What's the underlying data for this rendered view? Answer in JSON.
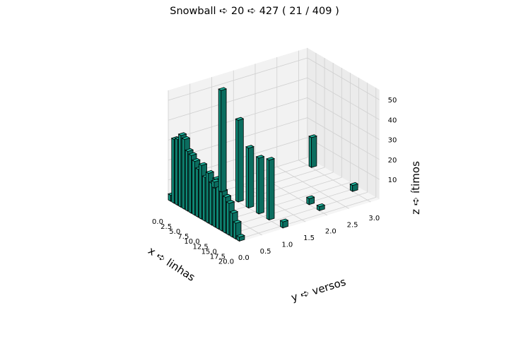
{
  "chart_data": {
    "type": "bar3d",
    "title": "Snowball ➪ 20 ➪ 427 ( 21 / 409 )",
    "xlabel": "x ➪ linhas",
    "ylabel": "y ➪ versos",
    "zlabel": "z ➪ ítimos",
    "x_ticks": [
      "0.0",
      "2.5",
      "5.0",
      "7.5",
      "10.0",
      "12.5",
      "15.0",
      "17.5",
      "20.0"
    ],
    "y_ticks": [
      "0.0",
      "0.5",
      "1.0",
      "1.5",
      "2.0",
      "2.5",
      "3.0"
    ],
    "z_ticks": [
      "10",
      "20",
      "30",
      "40",
      "50"
    ],
    "xlim": [
      0,
      21
    ],
    "ylim": [
      0,
      3.2
    ],
    "zlim": [
      0,
      55
    ],
    "grid": true,
    "bar_color": "#19b39b",
    "edge_color": "#000000",
    "bars": [
      {
        "x": 0,
        "y": 0,
        "z": 3
      },
      {
        "x": 1,
        "y": 0,
        "z": 32
      },
      {
        "x": 2,
        "y": 0,
        "z": 33
      },
      {
        "x": 3,
        "y": 0,
        "z": 36
      },
      {
        "x": 4,
        "y": 0,
        "z": 35
      },
      {
        "x": 5,
        "y": 0,
        "z": 30
      },
      {
        "x": 6,
        "y": 0,
        "z": 29
      },
      {
        "x": 7,
        "y": 0,
        "z": 27
      },
      {
        "x": 8,
        "y": 0,
        "z": 24
      },
      {
        "x": 9,
        "y": 0,
        "z": 27
      },
      {
        "x": 10,
        "y": 0,
        "z": 22
      },
      {
        "x": 11,
        "y": 0,
        "z": 25
      },
      {
        "x": 12,
        "y": 0,
        "z": 21
      },
      {
        "x": 13,
        "y": 0,
        "z": 24
      },
      {
        "x": 14,
        "y": 0,
        "z": 23
      },
      {
        "x": 15,
        "y": 0,
        "z": 20
      },
      {
        "x": 16,
        "y": 0,
        "z": 18
      },
      {
        "x": 17,
        "y": 0,
        "z": 16
      },
      {
        "x": 18,
        "y": 0,
        "z": 12
      },
      {
        "x": 19,
        "y": 0,
        "z": 8
      },
      {
        "x": 20,
        "y": 0,
        "z": 2
      },
      {
        "x": 0,
        "y": 1,
        "z": 3
      },
      {
        "x": 2,
        "y": 1,
        "z": 51
      },
      {
        "x": 7,
        "y": 1,
        "z": 41
      },
      {
        "x": 10,
        "y": 1,
        "z": 30
      },
      {
        "x": 13,
        "y": 1,
        "z": 28
      },
      {
        "x": 16,
        "y": 1,
        "z": 30
      },
      {
        "x": 20,
        "y": 1,
        "z": 3
      },
      {
        "x": 15,
        "y": 2,
        "z": 3
      },
      {
        "x": 18,
        "y": 2,
        "z": 2
      },
      {
        "x": 3,
        "y": 3,
        "z": 15
      },
      {
        "x": 15,
        "y": 3,
        "z": 3
      }
    ]
  }
}
